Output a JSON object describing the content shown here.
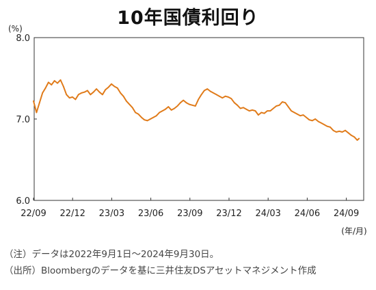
{
  "chart_data": {
    "type": "line",
    "title": "10年国債利回り",
    "y_unit": "(%)",
    "x_unit": "(年/月)",
    "ylim": [
      6.0,
      8.0
    ],
    "y_ticks": [
      {
        "value": 8.0,
        "label": "8.0"
      },
      {
        "value": 7.0,
        "label": "7.0"
      },
      {
        "value": 6.0,
        "label": "6.0"
      }
    ],
    "x_ticks": [
      "22/09",
      "22/12",
      "23/03",
      "23/06",
      "23/09",
      "23/12",
      "24/03",
      "24/06",
      "24/09"
    ],
    "grid": false,
    "legend": "none",
    "series": [
      {
        "color": "#E07B1A",
        "x": [
          "2022/09/01",
          "2022/09/08",
          "2022/09/15",
          "2022/09/22",
          "2022/09/29",
          "2022/10/06",
          "2022/10/13",
          "2022/10/20",
          "2022/10/27",
          "2022/11/03",
          "2022/11/10",
          "2022/11/17",
          "2022/11/24",
          "2022/12/01",
          "2022/12/08",
          "2022/12/15",
          "2022/12/22",
          "2022/12/29",
          "2023/01/05",
          "2023/01/12",
          "2023/01/19",
          "2023/01/26",
          "2023/02/02",
          "2023/02/09",
          "2023/02/16",
          "2023/02/23",
          "2023/03/02",
          "2023/03/09",
          "2023/03/16",
          "2023/03/23",
          "2023/03/30",
          "2023/04/06",
          "2023/04/13",
          "2023/04/20",
          "2023/04/27",
          "2023/05/04",
          "2023/05/11",
          "2023/05/18",
          "2023/05/25",
          "2023/06/01",
          "2023/06/08",
          "2023/06/15",
          "2023/06/22",
          "2023/06/29",
          "2023/07/06",
          "2023/07/13",
          "2023/07/20",
          "2023/07/27",
          "2023/08/03",
          "2023/08/10",
          "2023/08/17",
          "2023/08/24",
          "2023/08/31",
          "2023/09/07",
          "2023/09/14",
          "2023/09/21",
          "2023/09/28",
          "2023/10/05",
          "2023/10/12",
          "2023/10/19",
          "2023/10/26",
          "2023/11/02",
          "2023/11/09",
          "2023/11/16",
          "2023/11/23",
          "2023/11/30",
          "2023/12/07",
          "2023/12/14",
          "2023/12/21",
          "2023/12/28",
          "2024/01/04",
          "2024/01/11",
          "2024/01/18",
          "2024/01/25",
          "2024/02/01",
          "2024/02/08",
          "2024/02/15",
          "2024/02/22",
          "2024/02/29",
          "2024/03/07",
          "2024/03/14",
          "2024/03/21",
          "2024/03/28",
          "2024/04/04",
          "2024/04/11",
          "2024/04/18",
          "2024/04/25",
          "2024/05/02",
          "2024/05/09",
          "2024/05/16",
          "2024/05/23",
          "2024/05/30",
          "2024/06/06",
          "2024/06/13",
          "2024/06/20",
          "2024/06/27",
          "2024/07/04",
          "2024/07/11",
          "2024/07/18",
          "2024/07/25",
          "2024/08/01",
          "2024/08/08",
          "2024/08/15",
          "2024/08/22",
          "2024/08/29",
          "2024/09/05",
          "2024/09/12",
          "2024/09/19",
          "2024/09/26",
          "2024/09/30"
        ],
        "values": [
          7.22,
          7.08,
          7.2,
          7.32,
          7.38,
          7.45,
          7.42,
          7.47,
          7.44,
          7.48,
          7.4,
          7.3,
          7.26,
          7.27,
          7.24,
          7.3,
          7.32,
          7.33,
          7.35,
          7.3,
          7.33,
          7.37,
          7.33,
          7.3,
          7.36,
          7.39,
          7.43,
          7.4,
          7.38,
          7.32,
          7.28,
          7.22,
          7.18,
          7.14,
          7.08,
          7.06,
          7.02,
          6.99,
          6.98,
          7.0,
          7.02,
          7.04,
          7.08,
          7.1,
          7.12,
          7.15,
          7.11,
          7.13,
          7.16,
          7.2,
          7.23,
          7.2,
          7.18,
          7.17,
          7.16,
          7.24,
          7.3,
          7.35,
          7.37,
          7.34,
          7.32,
          7.3,
          7.28,
          7.26,
          7.28,
          7.27,
          7.25,
          7.2,
          7.17,
          7.13,
          7.14,
          7.12,
          7.1,
          7.11,
          7.1,
          7.05,
          7.08,
          7.07,
          7.1,
          7.1,
          7.13,
          7.16,
          7.17,
          7.21,
          7.2,
          7.15,
          7.1,
          7.08,
          7.06,
          7.04,
          7.05,
          7.02,
          6.99,
          6.98,
          7.0,
          6.97,
          6.95,
          6.93,
          6.91,
          6.9,
          6.86,
          6.84,
          6.85,
          6.84,
          6.86,
          6.83,
          6.8,
          6.78,
          6.74,
          6.76
        ]
      }
    ]
  },
  "notes": {
    "line1": "（注）データは2022年9月1日～2024年9月30日。",
    "line2": "（出所）Bloombergのデータを基に三井住友DSアセットマネジメント作成"
  }
}
